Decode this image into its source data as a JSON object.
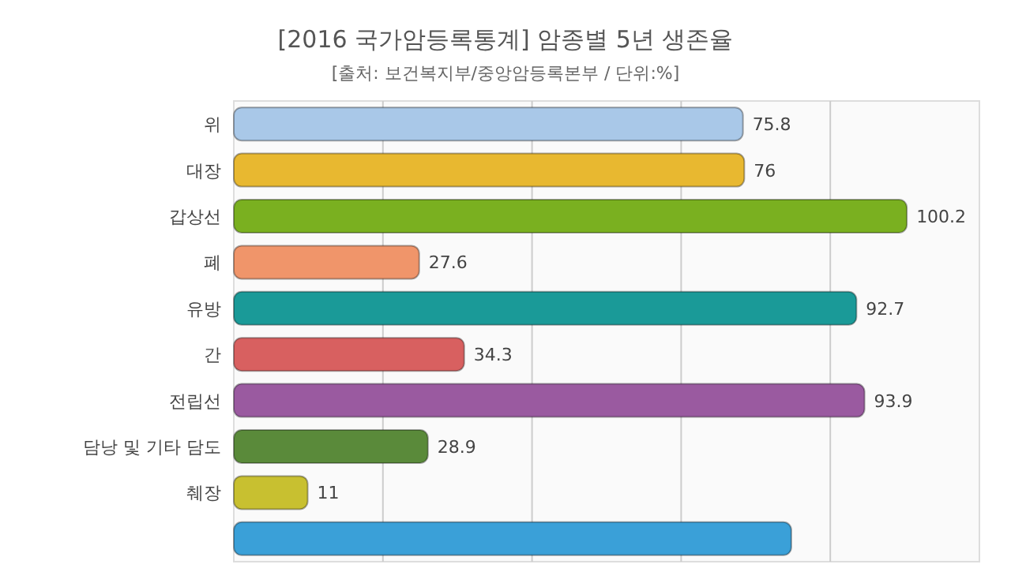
{
  "chart_data": {
    "type": "bar",
    "orientation": "horizontal",
    "title": "[2016 국가암등록통계] 암종별 5년 생존율",
    "subtitle": "[출처: 보건복지부/중앙암등록본부 / 단위:%]",
    "categories": [
      "위",
      "대장",
      "갑상선",
      "폐",
      "유방",
      "간",
      "전립선",
      "담낭 및 기타 담도",
      "췌장",
      null
    ],
    "values": [
      75.8,
      76,
      100.2,
      27.6,
      92.7,
      34.3,
      93.9,
      28.9,
      11,
      83
    ],
    "value_labels": [
      "75.8",
      "76",
      "100.2",
      "27.6",
      "92.7",
      "34.3",
      "93.9",
      "28.9",
      "11",
      null
    ],
    "colors": [
      "#a9c8e8",
      "#e8b830",
      "#7ab020",
      "#f0956a",
      "#1a9a98",
      "#d86060",
      "#9a5aa0",
      "#5a8a3a",
      "#c8c030",
      "#3aa0d8"
    ],
    "xlim": [
      0,
      111
    ],
    "xticks": [
      {
        "value": 22.2,
        "label": null
      },
      {
        "value": 44.4,
        "label": null
      },
      {
        "value": 66.6,
        "label": null
      },
      {
        "value": 88.8,
        "label": null
      }
    ],
    "grid": "x"
  }
}
